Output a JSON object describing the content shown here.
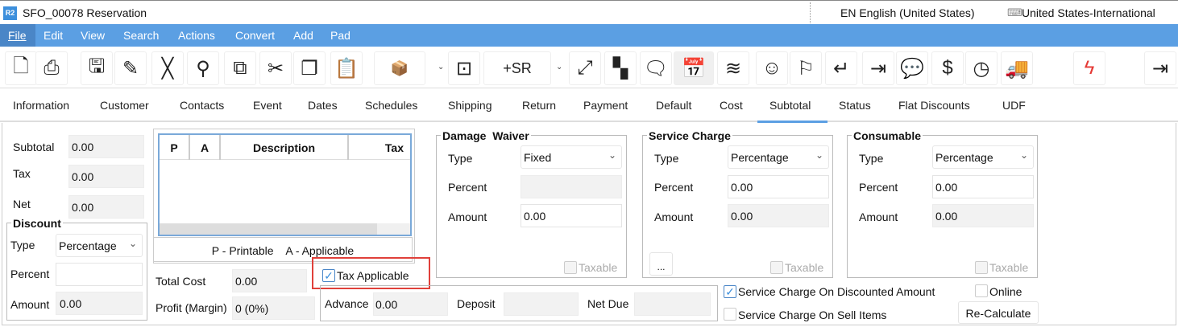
{
  "window": {
    "logo": "R2",
    "title": "SFO_00078 Reservation",
    "language": "EN English (United States)",
    "keyboard": "United States-International"
  },
  "menu": [
    "File",
    "Edit",
    "View",
    "Search",
    "Actions",
    "Convert",
    "Add",
    "Pad"
  ],
  "toolbar": {
    "icons": [
      "new-document",
      "print",
      "save",
      "edit-pencil",
      "delete-x",
      "search",
      "copy-number",
      "cut",
      "copy",
      "clipboard",
      "item-search",
      "search-window",
      "add-sr",
      "expand",
      "grid",
      "comment",
      "calendar-check",
      "layers",
      "smiley",
      "flag",
      "return",
      "import-box",
      "chat-zero",
      "invoice-dollar",
      "clock-dollar",
      "truck",
      "lightning",
      "logout"
    ],
    "add_sr_label": "+SR",
    "accent": "#e53935"
  },
  "tabs": [
    "Information",
    "Customer",
    "Contacts",
    "Event",
    "Dates",
    "Schedules",
    "Shipping",
    "Return",
    "Payment",
    "Default",
    "Cost",
    "Subtotal",
    "Status",
    "Flat Discounts",
    "UDF"
  ],
  "active_tab": "Subtotal",
  "totals": {
    "subtotal_label": "Subtotal",
    "subtotal": "0.00",
    "tax_label": "Tax",
    "tax": "0.00",
    "net_label": "Net",
    "net": "0.00"
  },
  "discount": {
    "title": "Discount",
    "type_label": "Type",
    "type": "Percentage",
    "percent_label": "Percent",
    "percent": "",
    "amount_label": "Amount",
    "amount": "0.00"
  },
  "tax_table": {
    "columns": [
      "P",
      "A",
      "Description",
      "Tax"
    ],
    "legend": "P - Printable    A - Applicable"
  },
  "cost": {
    "total_cost_label": "Total Cost",
    "total_cost": "0.00",
    "profit_label": "Profit (Margin)",
    "profit": "0 (0%)"
  },
  "tax_applicable": {
    "label": "Tax Applicable",
    "checked": true
  },
  "payment": {
    "advance_label": "Advance",
    "advance": "0.00",
    "deposit_label": "Deposit",
    "deposit": "",
    "net_due_label": "Net Due",
    "net_due": ""
  },
  "damage_waiver": {
    "title": "Damage  Waiver",
    "type_label": "Type",
    "type": "Fixed",
    "percent_label": "Percent",
    "percent": "",
    "amount_label": "Amount",
    "amount": "0.00",
    "taxable_label": "Taxable"
  },
  "service_charge": {
    "title": "Service Charge",
    "type_label": "Type",
    "type": "Percentage",
    "percent_label": "Percent",
    "percent": "0.00",
    "amount_label": "Amount",
    "amount": "0.00",
    "taxable_label": "Taxable",
    "more_label": "..."
  },
  "consumable": {
    "title": "Consumable",
    "type_label": "Type",
    "type": "Percentage",
    "percent_label": "Percent",
    "percent": "0.00",
    "amount_label": "Amount",
    "amount": "0.00",
    "taxable_label": "Taxable"
  },
  "options": {
    "sc_discounted_label": "Service Charge On Discounted Amount",
    "sc_discounted": true,
    "sc_sell_items_label": "Service Charge On Sell Items",
    "sc_sell_items": false,
    "online_label": "Online",
    "online": false,
    "recalculate_label": "Re-Calculate"
  }
}
